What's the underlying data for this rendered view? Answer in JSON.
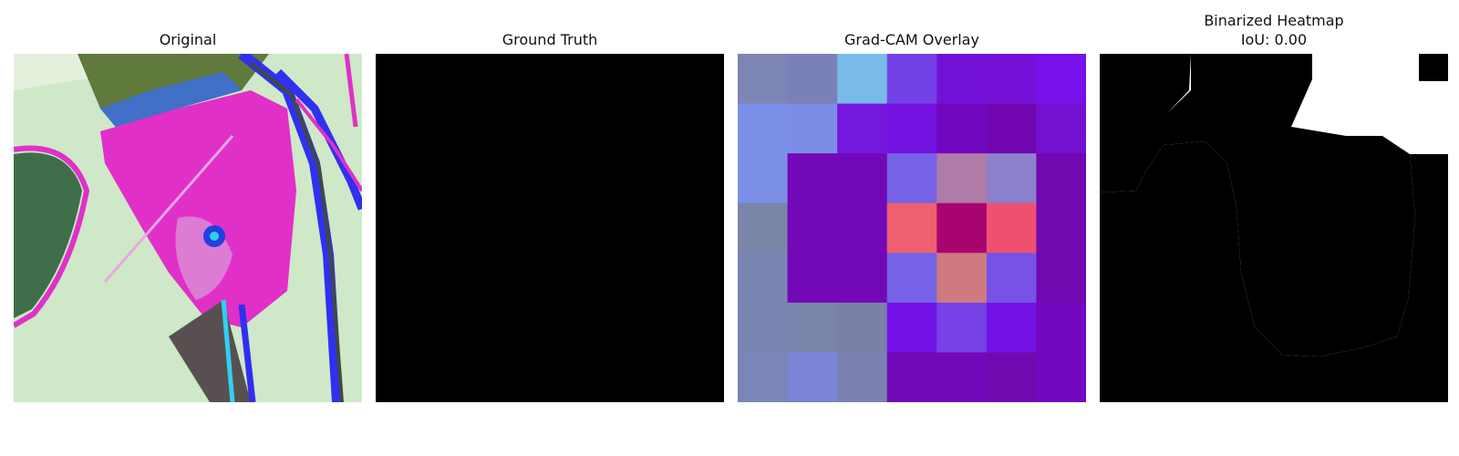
{
  "panels": [
    {
      "title": "Original"
    },
    {
      "title": "Ground Truth"
    },
    {
      "title": "Grad-CAM Overlay"
    },
    {
      "title": "Binarized Heatmap",
      "subtitle": "IoU: 0.00"
    }
  ],
  "gradcam_grid": {
    "rows": 7,
    "cols": 7,
    "cell_colors": [
      [
        "#7c85b4",
        "#7a80b8",
        "#79bbe8",
        "#7441e6",
        "#7211d6",
        "#7410d6",
        "#7710ea"
      ],
      [
        "#7b8fe8",
        "#7b8de6",
        "#7518de",
        "#7412e2",
        "#7207c0",
        "#7206b0",
        "#7410d0"
      ],
      [
        "#7b8fe8",
        "#7208b8",
        "#7208b8",
        "#7662e6",
        "#b07ba6",
        "#8d80cc",
        "#7208b0"
      ],
      [
        "#7a85a8",
        "#7208b8",
        "#7208b8",
        "#ee6070",
        "#a80470",
        "#ee5070",
        "#7208b0"
      ],
      [
        "#7a85b4",
        "#7208b8",
        "#7208b8",
        "#7662e6",
        "#ce7a80",
        "#7652e6",
        "#7208b0"
      ],
      [
        "#7a85b4",
        "#7a85ac",
        "#7a80a8",
        "#7212e6",
        "#7641e6",
        "#7212e6",
        "#7208c0"
      ],
      [
        "#7a85b8",
        "#7a84d6",
        "#7a80b0",
        "#7208b8",
        "#7208b8",
        "#7208b0",
        "#7208c0"
      ]
    ]
  },
  "colors": {
    "background": "#ffffff",
    "mask_black": "#000000",
    "mask_white": "#ffffff"
  }
}
